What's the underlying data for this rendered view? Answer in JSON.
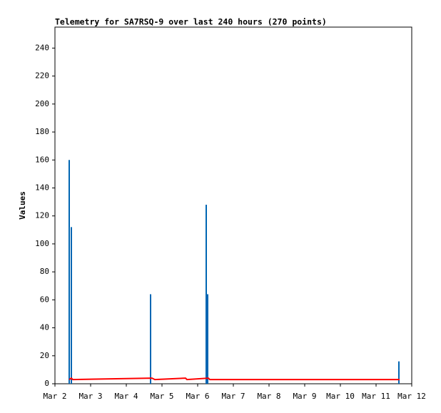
{
  "chart_data": {
    "type": "combo",
    "title": "Telemetry for SA7RSQ-9 over last 240 hours (270 points)",
    "y_label": "Values",
    "xlim": [
      2,
      12
    ],
    "xticks": [
      {
        "value": 2,
        "label": "Mar 2"
      },
      {
        "value": 3,
        "label": "Mar 3"
      },
      {
        "value": 4,
        "label": "Mar 4"
      },
      {
        "value": 5,
        "label": "Mar 5"
      },
      {
        "value": 6,
        "label": "Mar 6"
      },
      {
        "value": 7,
        "label": "Mar 7"
      },
      {
        "value": 8,
        "label": "Mar 8"
      },
      {
        "value": 9,
        "label": "Mar 9"
      },
      {
        "value": 10,
        "label": "Mar 10"
      },
      {
        "value": 11,
        "label": "Mar 11"
      },
      {
        "value": 12,
        "label": "Mar 12"
      }
    ],
    "ylim": [
      0,
      255
    ],
    "yticks": [
      0,
      20,
      40,
      60,
      80,
      100,
      120,
      140,
      160,
      180,
      200,
      220,
      240
    ],
    "grid": false,
    "series": [
      {
        "type": "bar",
        "color": "#0066b3",
        "x": [
          2.4,
          2.46,
          4.68,
          6.24,
          6.28,
          11.64
        ],
        "values": [
          160,
          112,
          64,
          128,
          64,
          16
        ]
      },
      {
        "type": "line",
        "color": "#ff0000",
        "x": [
          2.4,
          2.46,
          2.5,
          4.72,
          4.8,
          5.66,
          5.7,
          6.3,
          6.34,
          11.66
        ],
        "values": [
          3,
          4,
          3,
          4,
          3,
          4,
          3,
          4,
          3,
          3
        ]
      }
    ]
  }
}
